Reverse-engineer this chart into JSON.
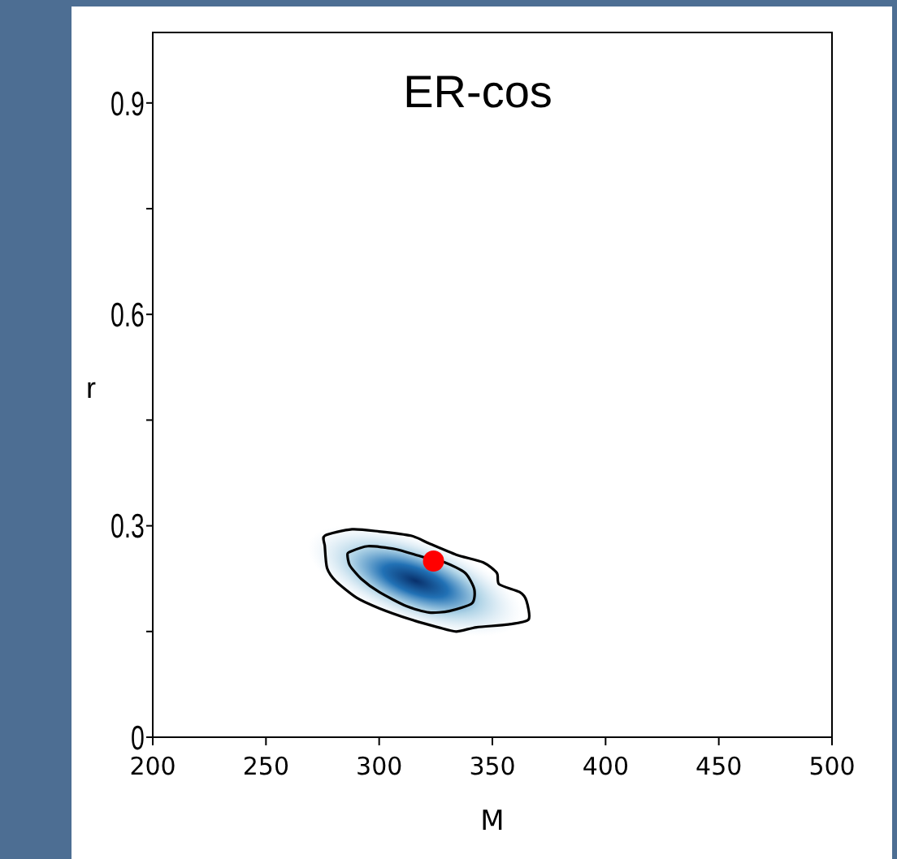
{
  "chart_data": {
    "type": "scatter",
    "title": "ER-cos",
    "xlabel": "M",
    "ylabel": "r",
    "xlim": [
      200,
      500
    ],
    "xticks": [
      {
        "value": 200,
        "label": "200"
      },
      250,
      300,
      350,
      400,
      450,
      500
    ],
    "ylim": [
      0,
      1.0
    ],
    "yticks": [
      0,
      {
        "value": 0.15,
        "label": null
      },
      0.3,
      {
        "value": 0.45,
        "label": null
      },
      0.6,
      {
        "value": 0.75,
        "label": null
      },
      0.9
    ],
    "grid": false,
    "series": [
      {
        "type": "scatter",
        "color": "#ff0000",
        "marker": "circle",
        "x": [
          324
        ],
        "values": [
          0.25
        ]
      }
    ]
  }
}
